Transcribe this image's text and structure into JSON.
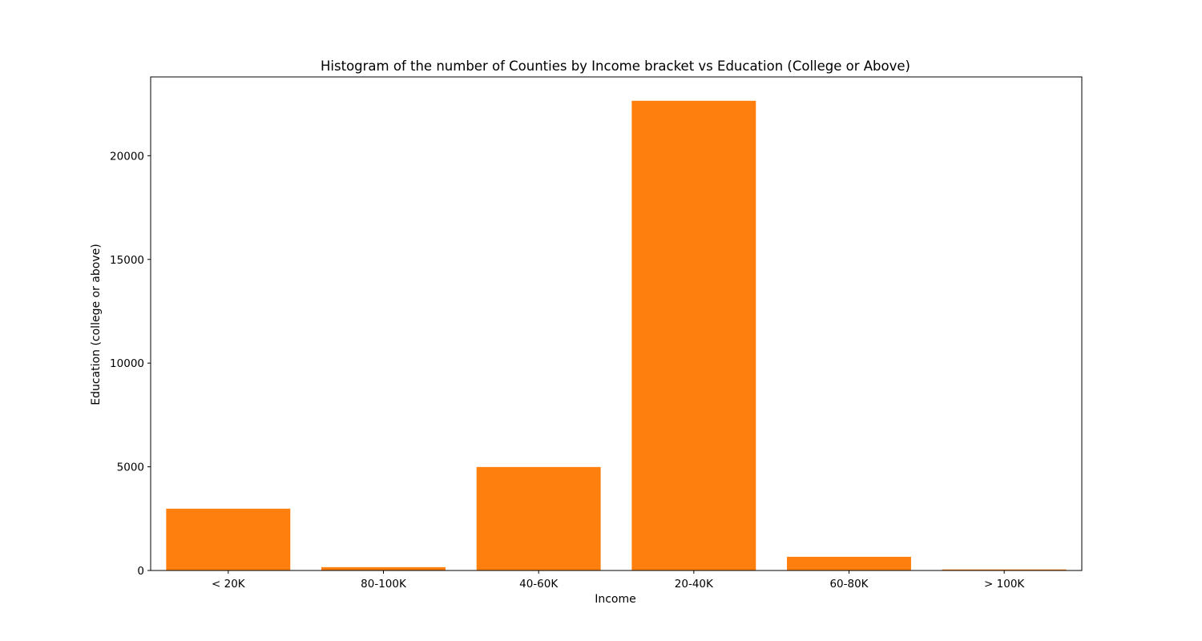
{
  "chart_data": {
    "type": "bar",
    "title": "Histogram of the number of Counties by Income bracket vs Education (College or Above)",
    "xlabel": "Income",
    "ylabel": "Education (college or above)",
    "categories": [
      "< 20K",
      "80-100K",
      "40-60K",
      "20-40K",
      "60-80K",
      "> 100K"
    ],
    "values": [
      2980,
      160,
      4990,
      22650,
      660,
      50
    ],
    "ylim": [
      0,
      23800
    ],
    "yticks": [
      0,
      5000,
      10000,
      15000,
      20000
    ],
    "bar_color": "#ff7f0e",
    "grid": false,
    "legend": "none"
  }
}
